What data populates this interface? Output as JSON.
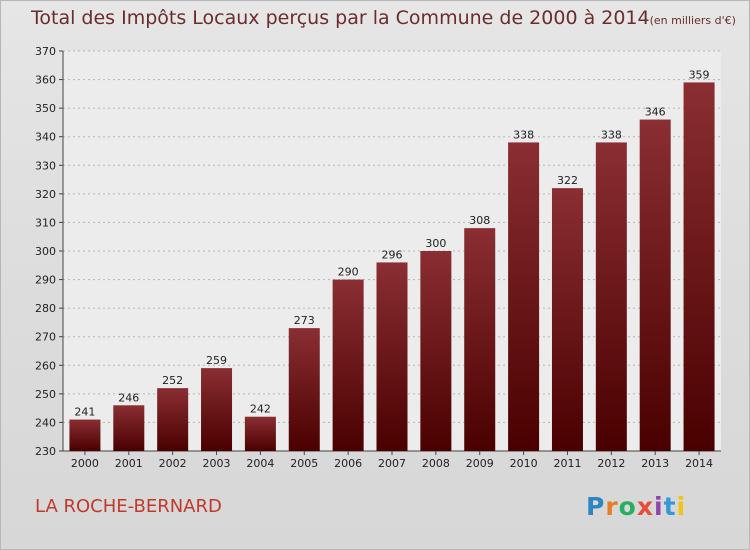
{
  "chart_data": {
    "type": "bar",
    "title": "Total des Impôts Locaux perçus par la Commune de 2000 à 2014",
    "unit": "(en milliers d'€)",
    "categories": [
      "2000",
      "2001",
      "2002",
      "2003",
      "2004",
      "2005",
      "2006",
      "2007",
      "2008",
      "2009",
      "2010",
      "2011",
      "2012",
      "2013",
      "2014"
    ],
    "values": [
      241,
      246,
      252,
      259,
      242,
      273,
      290,
      296,
      300,
      308,
      338,
      322,
      338,
      346,
      359
    ],
    "ylim": [
      230,
      370
    ],
    "yticks": [
      230,
      240,
      250,
      260,
      270,
      280,
      290,
      300,
      310,
      320,
      330,
      340,
      350,
      360,
      370
    ],
    "grid": true,
    "xlabel": "",
    "ylabel": "",
    "bar_color_top": "#8a2e33",
    "bar_color_bottom": "#4a0000"
  },
  "footer": {
    "commune": "LA ROCHE-BERNARD",
    "brand": [
      "P",
      "r",
      "o",
      "x",
      "i",
      "t",
      "i"
    ],
    "brand_colors": [
      "#2e86c1",
      "#e67e22",
      "#27ae60",
      "#e74c3c",
      "#8e44ad",
      "#3498db",
      "#f1c40f"
    ]
  }
}
